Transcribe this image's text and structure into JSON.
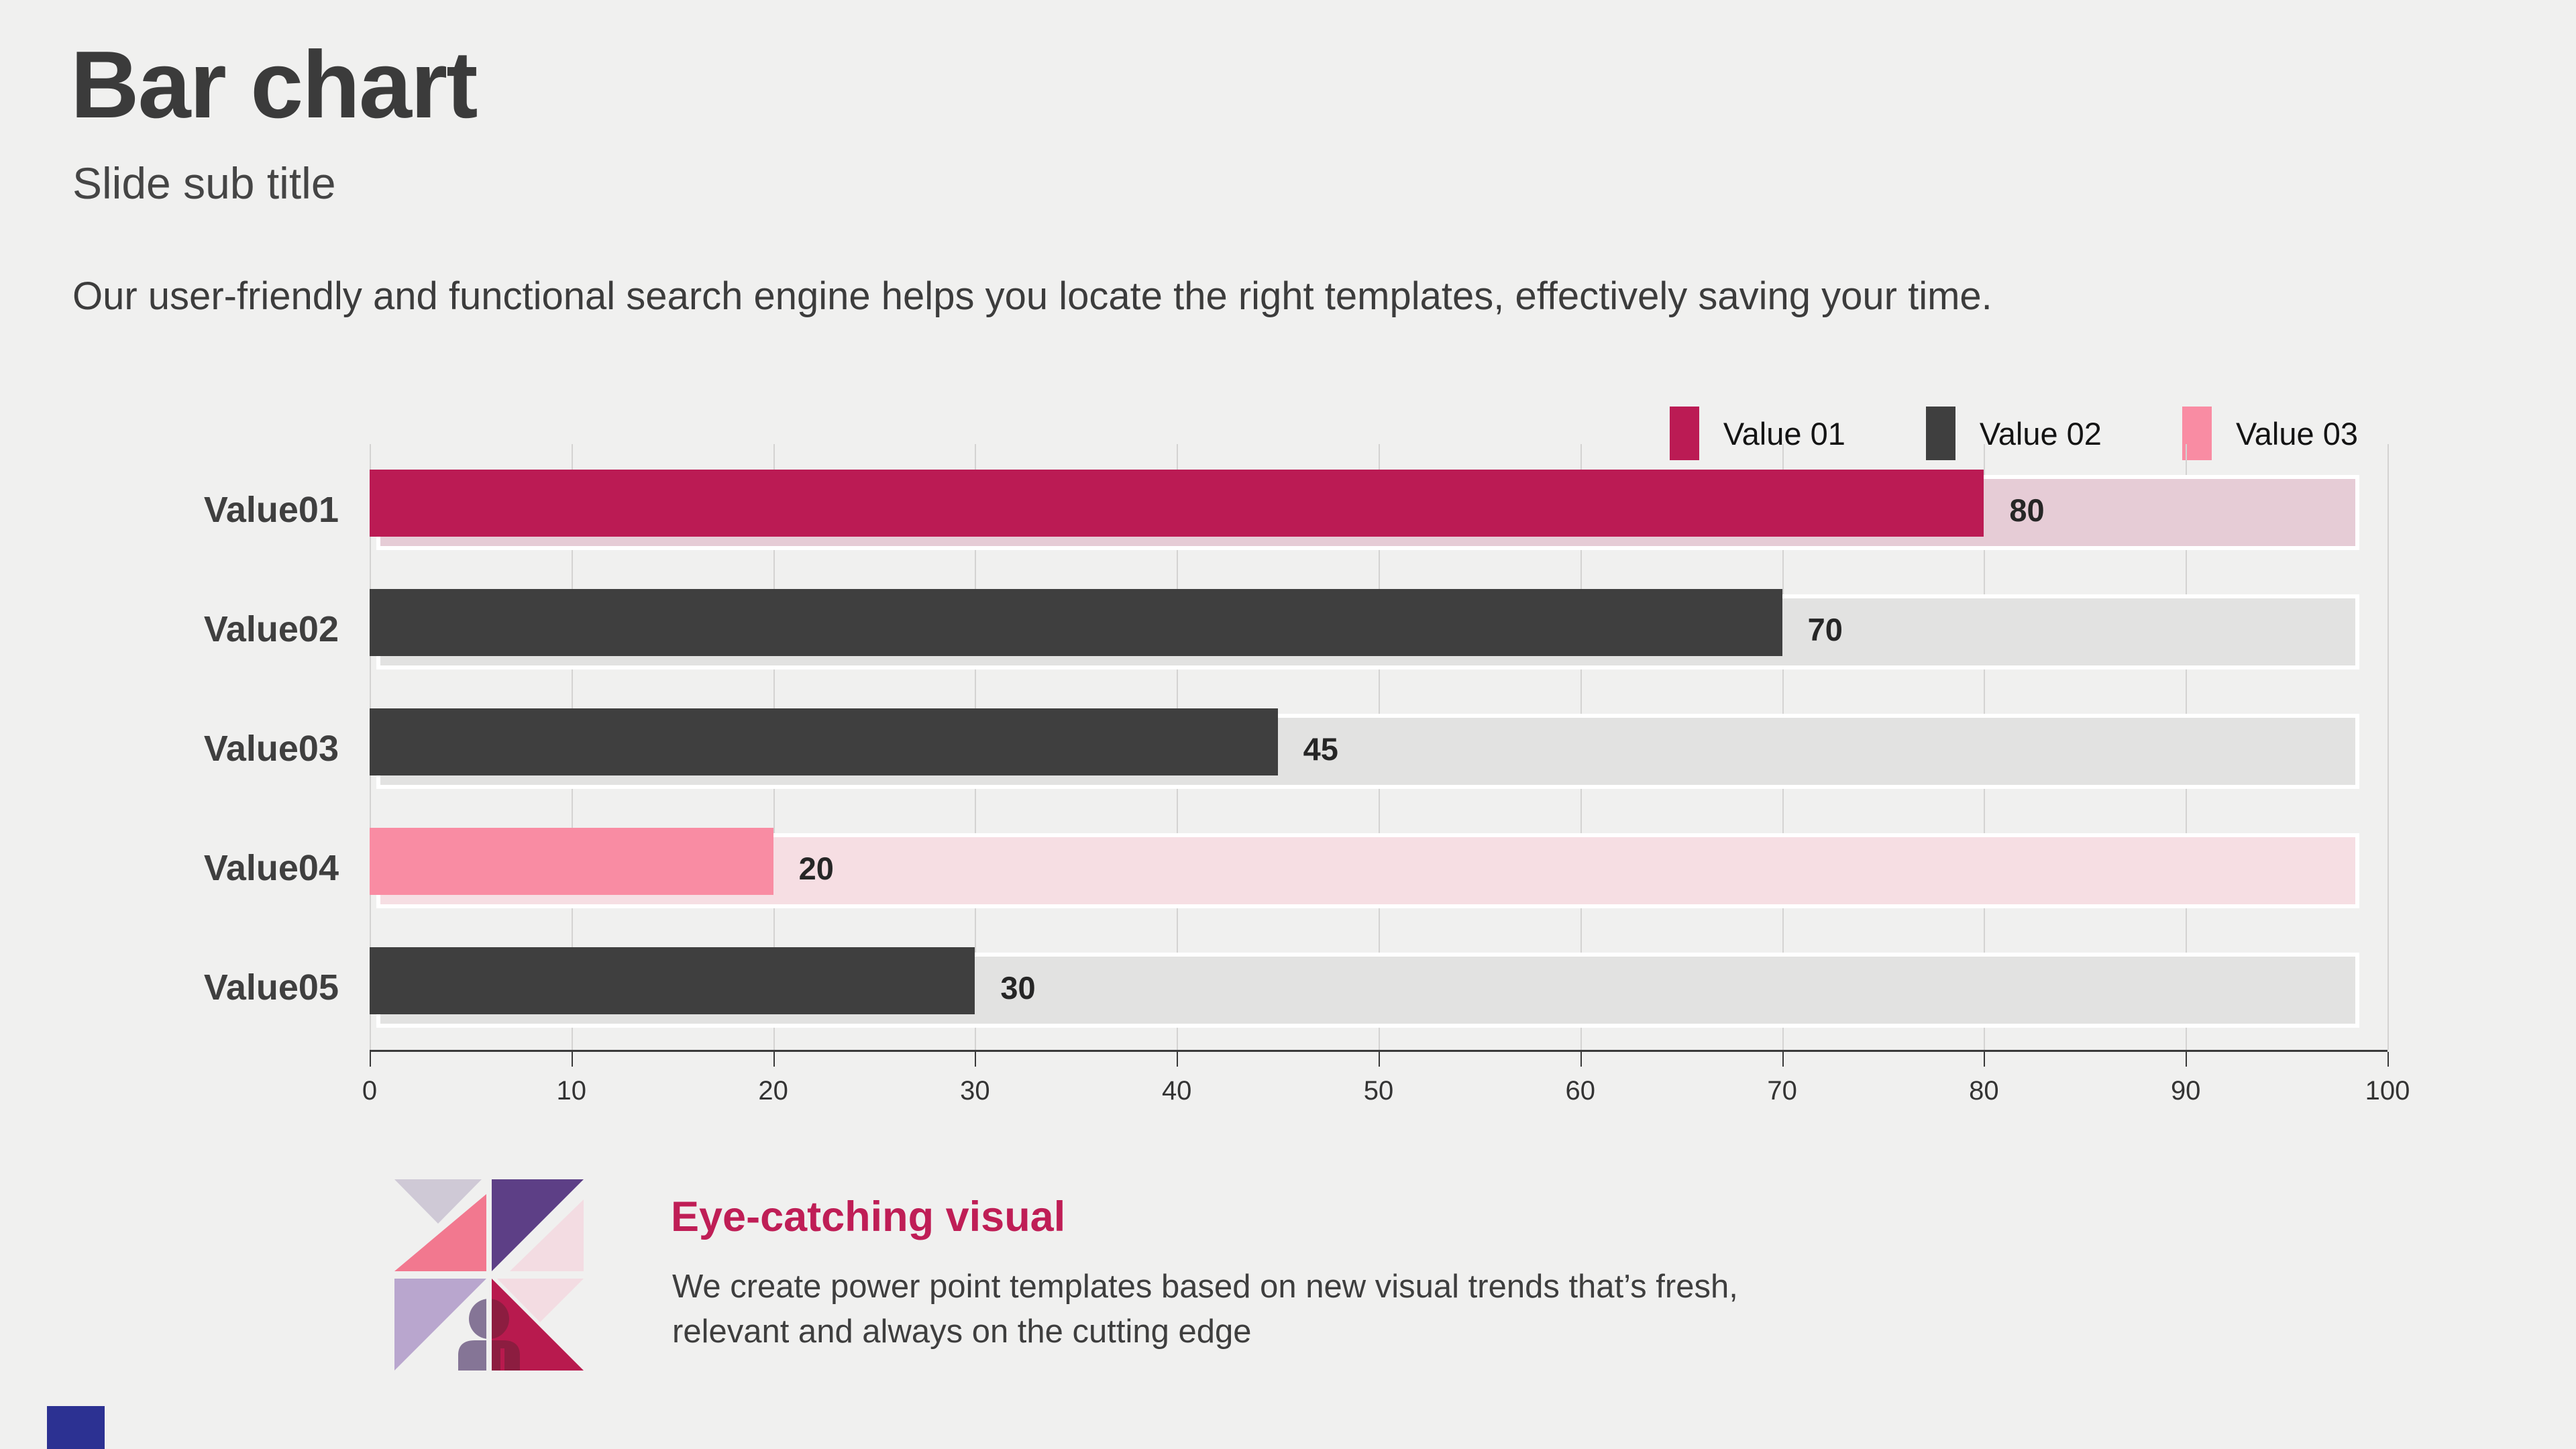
{
  "slide": {
    "title": "Bar chart",
    "subtitle": "Slide sub title",
    "description": "Our user-friendly and functional search engine helps you locate the right templates, effectively saving your time."
  },
  "legend": {
    "items": [
      {
        "label": "Value 01",
        "color": "#bb1b54"
      },
      {
        "label": "Value 02",
        "color": "#3f3f3f"
      },
      {
        "label": "Value 03",
        "color": "#f98ca3"
      }
    ]
  },
  "chart_data": {
    "type": "bar",
    "orientation": "horizontal",
    "categories": [
      "Value01",
      "Value02",
      "Value03",
      "Value04",
      "Value05"
    ],
    "values": [
      80,
      70,
      45,
      20,
      30
    ],
    "bar_colors": [
      "#bb1b54",
      "#3f3f3f",
      "#3f3f3f",
      "#f98ca3",
      "#3f3f3f"
    ],
    "track_colors": [
      "#e6ccd6",
      "#e2e2e1",
      "#e2e2e1",
      "#f6dee3",
      "#e2e2e1"
    ],
    "value_labels": [
      "80",
      "70",
      "45",
      "20",
      "30"
    ],
    "xlabel": "",
    "ylabel": "",
    "xlim": [
      0,
      100
    ],
    "x_ticks": [
      0,
      10,
      20,
      30,
      40,
      50,
      60,
      70,
      80,
      90,
      100
    ],
    "grid": "vertical-gridlines-on",
    "track_extent": 98.4,
    "legend_position": "top-right"
  },
  "footer": {
    "heading": "Eye-catching visual",
    "body_line1": "We create power point templates based on new visual trends that’s fresh,",
    "body_line2": "relevant and always on the cutting edge"
  },
  "logo": {
    "colors": {
      "gray_lavender": "#cfc9d6",
      "pink": "#f2788f",
      "purple": "#5d3f86",
      "light_pink": "#f3dce2",
      "lavender": "#b9a6ce",
      "crimson": "#b81a4e",
      "person_left": "#857596",
      "person_right": "#8c1d40"
    }
  },
  "corner_square_color": "#2c3192"
}
